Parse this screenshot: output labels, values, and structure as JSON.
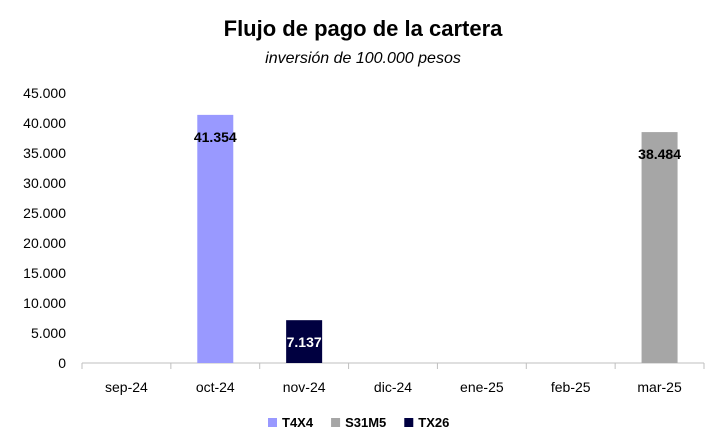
{
  "chart_data": {
    "type": "bar",
    "title": "Flujo de pago de la cartera",
    "subtitle": "inversión de 100.000 pesos",
    "categories": [
      "sep-24",
      "oct-24",
      "nov-24",
      "dic-24",
      "ene-25",
      "feb-25",
      "mar-25"
    ],
    "series": [
      {
        "name": "T4X4",
        "color": "#9999FF",
        "values": [
          0,
          41354,
          0,
          0,
          0,
          0,
          0
        ]
      },
      {
        "name": "S31M5",
        "color": "#A6A6A6",
        "values": [
          0,
          0,
          0,
          0,
          0,
          0,
          38484
        ]
      },
      {
        "name": "TX26",
        "color": "#000040",
        "values": [
          0,
          0,
          7137,
          0,
          0,
          0,
          0
        ]
      }
    ],
    "data_labels": [
      {
        "category": "oct-24",
        "series": "T4X4",
        "text": "41.354",
        "value": 41354
      },
      {
        "category": "nov-24",
        "series": "TX26",
        "text": "7.137",
        "value": 7137
      },
      {
        "category": "mar-25",
        "series": "S31M5",
        "text": "38.484",
        "value": 38484
      }
    ],
    "ylim": [
      0,
      45000
    ],
    "yticks": [
      0,
      5000,
      10000,
      15000,
      20000,
      25000,
      30000,
      35000,
      40000,
      45000
    ],
    "ytick_labels": [
      "0",
      "5.000",
      "10.000",
      "15.000",
      "20.000",
      "25.000",
      "30.000",
      "35.000",
      "40.000",
      "45.000"
    ],
    "grid": false,
    "legend": "bottom",
    "xlabel": "",
    "ylabel": ""
  }
}
